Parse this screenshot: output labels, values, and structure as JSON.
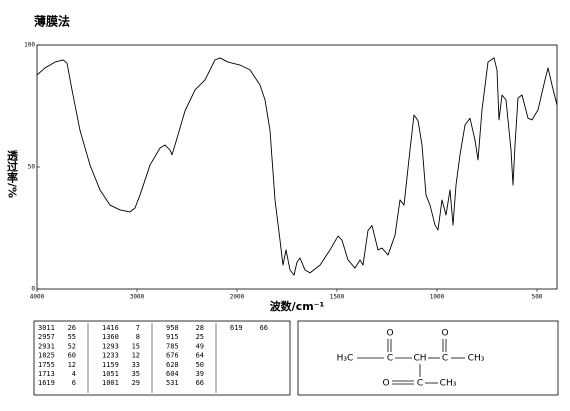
{
  "chart_data": {
    "type": "line",
    "title": "薄膜法",
    "xlabel": "波数/cm⁻¹",
    "ylabel": "透过率/%",
    "color": "#000000",
    "x": [
      4000,
      3920,
      3820,
      3740,
      3700,
      3650,
      3570,
      3470,
      3370,
      3270,
      3170,
      3070,
      3020,
      2970,
      2870,
      2770,
      2720,
      2670,
      2650,
      2620,
      2520,
      2420,
      2320,
      2220,
      2170,
      2090,
      1985,
      1935,
      1885,
      1860,
      1835,
      1810,
      1785,
      1770,
      1755,
      1735,
      1715,
      1700,
      1685,
      1660,
      1635,
      1585,
      1535,
      1495,
      1475,
      1445,
      1410,
      1385,
      1370,
      1345,
      1325,
      1295,
      1275,
      1245,
      1210,
      1185,
      1165,
      1135,
      1115,
      1095,
      1075,
      1055,
      1035,
      1010,
      995,
      975,
      955,
      935,
      920,
      905,
      885,
      860,
      835,
      810,
      795,
      775,
      745,
      715,
      700,
      690,
      675,
      655,
      630,
      620,
      610,
      595,
      575,
      545,
      525,
      495,
      460,
      445,
      425,
      400
    ],
    "values": [
      87.7,
      90.6,
      93,
      93.9,
      92.6,
      81.6,
      65,
      50.8,
      40.6,
      34.4,
      32.4,
      31.6,
      33.2,
      38.5,
      50.8,
      57.8,
      59,
      57,
      55,
      59,
      73,
      81.6,
      85.7,
      93.9,
      94.7,
      93,
      91.8,
      89.8,
      83.6,
      77.5,
      65,
      36.5,
      20,
      9.8,
      16,
      7.8,
      5.7,
      11,
      12.7,
      7.8,
      6.6,
      9.8,
      16,
      21.7,
      20,
      11.9,
      8.6,
      11.9,
      9.8,
      24,
      26,
      16,
      16.8,
      13.9,
      22,
      36.5,
      34.4,
      57,
      71.3,
      69,
      59,
      38.5,
      34.4,
      26.2,
      24.2,
      36.5,
      30.3,
      40.6,
      26.2,
      42.6,
      55,
      67.2,
      70,
      61,
      52.9,
      73.4,
      93,
      94.7,
      89.8,
      69.3,
      79.5,
      77.5,
      57,
      42.6,
      59,
      78.3,
      79.5,
      70,
      69.3,
      73.4,
      85.7,
      90.6,
      83.6,
      75.4
    ],
    "xlim": [
      4000,
      400
    ],
    "ylim": [
      0,
      100
    ],
    "xticks": [
      4000,
      3000,
      2000,
      1500,
      1000,
      500
    ],
    "yticks": [
      100,
      50,
      0
    ]
  },
  "peak_table": [
    [
      3011,
      26
    ],
    [
      2957,
      55
    ],
    [
      2931,
      52
    ],
    [
      1825,
      60
    ],
    [
      1755,
      12
    ],
    [
      1713,
      4
    ],
    [
      1619,
      6
    ],
    [
      1416,
      7
    ],
    [
      1360,
      8
    ],
    [
      1293,
      15
    ],
    [
      1233,
      12
    ],
    [
      1159,
      33
    ],
    [
      1051,
      35
    ],
    [
      1001,
      29
    ],
    [
      950,
      28
    ],
    [
      915,
      25
    ],
    [
      785,
      49
    ],
    [
      676,
      64
    ],
    [
      628,
      50
    ],
    [
      604,
      39
    ],
    [
      531,
      66
    ],
    [
      619,
      66
    ]
  ],
  "structure": {
    "atoms": [
      "O",
      "O",
      "H₃C",
      "C",
      "CH",
      "C",
      "CH₃",
      "O",
      "C",
      "CH₃"
    ]
  }
}
